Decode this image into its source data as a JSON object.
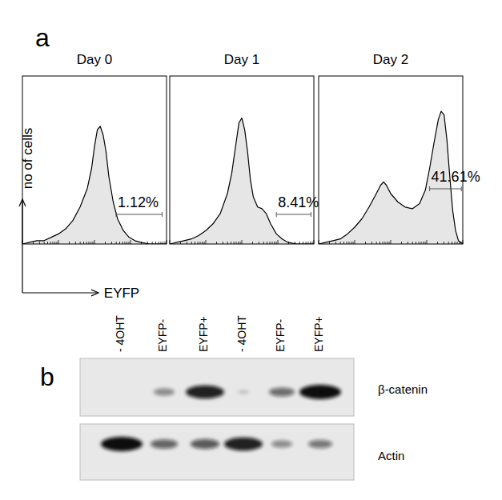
{
  "panel_a": {
    "label": "a",
    "y_label": "no of cells",
    "x_label": "EYFP"
  },
  "chart_data": [
    {
      "type": "area",
      "title": "Day 0",
      "color": "#e6e6e6",
      "tick_labels": false,
      "xlim": [
        0,
        100
      ],
      "ylim": [
        0,
        100
      ],
      "xticks": [
        0,
        7.5,
        11.9,
        15.1,
        17.5,
        19.5,
        21.1,
        22.6,
        23.9,
        25,
        32.5,
        36.9,
        40.1,
        42.5,
        44.5,
        46.1,
        47.6,
        48.9,
        50,
        57.5,
        61.9,
        65.1,
        67.5,
        69.5,
        71.1,
        72.6,
        73.9,
        75,
        82.5,
        86.9,
        90.1,
        92.5,
        94.5,
        96.1,
        97.6,
        98.9,
        100
      ],
      "yticks": [],
      "x": [
        0,
        5,
        10,
        15,
        20,
        25,
        30,
        35,
        40,
        45,
        48,
        50,
        52,
        54,
        56,
        58,
        60,
        63,
        66,
        70,
        74,
        78,
        82,
        88,
        100
      ],
      "values": [
        0,
        1,
        2,
        2,
        4,
        6,
        9,
        14,
        22,
        33,
        45,
        58,
        68,
        70,
        65,
        55,
        40,
        25,
        15,
        8,
        4,
        2,
        1,
        0,
        0
      ],
      "gate": [
        65,
        97
      ],
      "gate_label": "1.12%"
    },
    {
      "type": "area",
      "title": "Day 1",
      "color": "#e6e6e6",
      "tick_labels": false,
      "xlim": [
        0,
        100
      ],
      "ylim": [
        0,
        100
      ],
      "xticks": [
        0,
        7.5,
        11.9,
        15.1,
        17.5,
        19.5,
        21.1,
        22.6,
        23.9,
        25,
        32.5,
        36.9,
        40.1,
        42.5,
        44.5,
        46.1,
        47.6,
        48.9,
        50,
        57.5,
        61.9,
        65.1,
        67.5,
        69.5,
        71.1,
        72.6,
        73.9,
        75,
        82.5,
        86.9,
        90.1,
        92.5,
        94.5,
        96.1,
        97.6,
        98.9,
        100
      ],
      "yticks": [],
      "x": [
        0,
        5,
        10,
        15,
        20,
        25,
        30,
        35,
        40,
        43,
        46,
        48,
        50,
        52,
        54,
        56,
        58,
        61,
        64,
        67,
        70,
        74,
        78,
        82,
        88,
        100
      ],
      "values": [
        0,
        1,
        2,
        3,
        5,
        8,
        12,
        18,
        30,
        42,
        60,
        72,
        75,
        68,
        55,
        38,
        28,
        22,
        21,
        18,
        12,
        6,
        3,
        1,
        0,
        0
      ],
      "gate": [
        74,
        98
      ],
      "gate_label": "8.41%"
    },
    {
      "type": "area",
      "title": "Day 2",
      "color": "#e6e6e6",
      "tick_labels": false,
      "xlim": [
        0,
        100
      ],
      "ylim": [
        0,
        100
      ],
      "xticks": [
        0,
        7.5,
        11.9,
        15.1,
        17.5,
        19.5,
        21.1,
        22.6,
        23.9,
        25,
        32.5,
        36.9,
        40.1,
        42.5,
        44.5,
        46.1,
        47.6,
        48.9,
        50,
        57.5,
        61.9,
        65.1,
        67.5,
        69.5,
        71.1,
        72.6,
        73.9,
        75,
        82.5,
        86.9,
        90.1,
        92.5,
        94.5,
        96.1,
        97.6,
        98.9,
        100
      ],
      "yticks": [],
      "x": [
        0,
        5,
        10,
        15,
        20,
        25,
        30,
        35,
        40,
        43,
        45,
        47,
        50,
        55,
        60,
        65,
        70,
        74,
        77,
        80,
        83,
        85,
        87,
        89,
        91,
        93,
        95,
        97,
        100
      ],
      "values": [
        0,
        1,
        2,
        3,
        6,
        10,
        15,
        22,
        30,
        35,
        37,
        35,
        30,
        25,
        22,
        21,
        24,
        32,
        45,
        60,
        74,
        79,
        77,
        62,
        40,
        20,
        8,
        2,
        0
      ],
      "gate": [
        77,
        99
      ],
      "gate_label": "41.61%"
    }
  ],
  "panel_b": {
    "label": "b",
    "lanes": [
      "- 4OHT",
      "EYFP-",
      "EYFP+",
      "- 4OHT",
      "EYFP-",
      "EYFP+"
    ],
    "blots": [
      {
        "name": "β-catenin",
        "intensities": [
          0,
          0.35,
          0.9,
          0.05,
          0.5,
          1.0
        ]
      },
      {
        "name": "Actin",
        "intensities": [
          1.0,
          0.55,
          0.6,
          0.9,
          0.35,
          0.45
        ]
      }
    ]
  }
}
